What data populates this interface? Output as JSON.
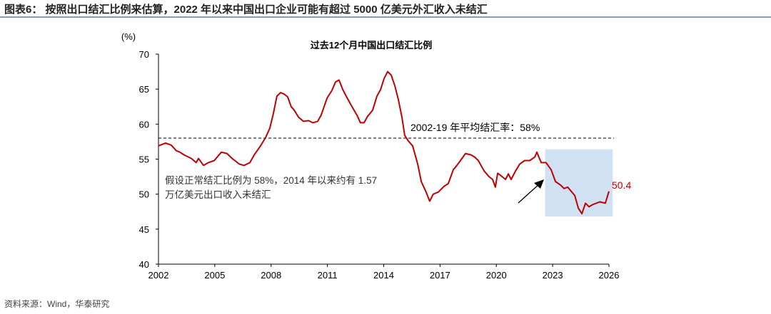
{
  "figure_title": "图表6： 按照出口结汇比例来估算，2022 年以来中国出口企业可能有超过 5000 亿美元外汇收入未结汇",
  "source": "资料来源：Wind，华泰研究",
  "chart_data": {
    "type": "line",
    "title": "过去12个月中国出口结汇比例",
    "ylabel": "(%)",
    "xlabel": "",
    "xlim": [
      2002,
      2026
    ],
    "ylim": [
      40,
      70
    ],
    "x_ticks": [
      2002,
      2005,
      2008,
      2011,
      2014,
      2017,
      2020,
      2023,
      2026
    ],
    "y_ticks": [
      40,
      45,
      50,
      55,
      60,
      65,
      70
    ],
    "grid": false,
    "colors": {
      "line": "#c00000",
      "reference": "#000000",
      "highlight": "#cfe1f2",
      "end_label": "#c00000"
    },
    "reference_line": {
      "value": 58,
      "label": "2002-19 年平均结汇率：58%"
    },
    "annotation": {
      "line1": "假设正常结汇比例为 58%，2014 年以来约有 1.57",
      "line2": "万亿美元出口收入未结汇"
    },
    "highlight_region": {
      "x": [
        2022.6,
        2026.2
      ],
      "y": [
        46.8,
        56.4
      ]
    },
    "end_label": "50.4",
    "series": [
      {
        "x": [
          2002.0,
          2002.38,
          2002.68,
          2002.95,
          2003.14,
          2003.37,
          2003.75,
          2004.01,
          2004.13,
          2004.4,
          2004.66,
          2004.97,
          2005.35,
          2005.65,
          2005.92,
          2006.3,
          2006.56,
          2006.87,
          2007.1,
          2007.44,
          2007.71,
          2007.93,
          2008.12,
          2008.31,
          2008.5,
          2008.69,
          2008.88,
          2009.07,
          2009.23,
          2009.46,
          2009.72,
          2009.99,
          2010.22,
          2010.48,
          2010.67,
          2010.98,
          2011.24,
          2011.43,
          2011.62,
          2011.81,
          2012.0,
          2012.31,
          2012.57,
          2012.76,
          2012.95,
          2013.14,
          2013.41,
          2013.64,
          2013.83,
          2014.02,
          2014.21,
          2014.4,
          2014.59,
          2014.78,
          2014.97,
          2015.12,
          2015.31,
          2015.54,
          2015.81,
          2016.0,
          2016.26,
          2016.45,
          2016.64,
          2016.91,
          2017.21,
          2017.44,
          2017.71,
          2017.9,
          2018.09,
          2018.36,
          2018.66,
          2018.85,
          2019.04,
          2019.35,
          2019.61,
          2019.8,
          2019.95,
          2020.07,
          2020.26,
          2020.49,
          2020.64,
          2020.79,
          2021.02,
          2021.25,
          2021.51,
          2021.78,
          2022.05,
          2022.16,
          2022.39,
          2022.65,
          2022.92,
          2023.15,
          2023.42,
          2023.61,
          2023.8,
          2024.18,
          2024.37,
          2024.56,
          2024.75,
          2024.94,
          2025.13,
          2025.51,
          2025.81,
          2026.0
        ],
        "values": [
          56.9,
          57.3,
          57.0,
          56.2,
          56.0,
          55.6,
          55.1,
          54.5,
          55.1,
          54.1,
          54.5,
          54.8,
          56.0,
          55.8,
          55.1,
          54.3,
          54.1,
          54.5,
          55.6,
          56.9,
          58.1,
          59.4,
          61.5,
          64.0,
          64.5,
          64.3,
          63.9,
          62.5,
          62.0,
          61.0,
          60.4,
          60.5,
          60.2,
          60.4,
          61.3,
          63.7,
          64.8,
          66.0,
          66.3,
          65.0,
          64.0,
          62.5,
          61.3,
          60.2,
          60.2,
          61.1,
          62.0,
          64.0,
          64.9,
          66.5,
          67.5,
          67.0,
          65.5,
          63.5,
          61.0,
          58.4,
          57.6,
          56.9,
          54.3,
          51.8,
          50.3,
          49.0,
          50.0,
          50.3,
          51.1,
          51.5,
          53.5,
          54.1,
          54.8,
          55.8,
          55.6,
          55.3,
          54.8,
          53.3,
          52.5,
          52.1,
          51.0,
          53.0,
          52.6,
          52.1,
          52.9,
          52.1,
          53.3,
          54.3,
          54.8,
          54.8,
          55.3,
          56.0,
          54.5,
          54.5,
          53.5,
          51.8,
          51.3,
          50.8,
          51.0,
          49.8,
          48.0,
          47.2,
          48.7,
          48.2,
          48.5,
          48.9,
          48.7,
          50.4
        ]
      }
    ]
  }
}
